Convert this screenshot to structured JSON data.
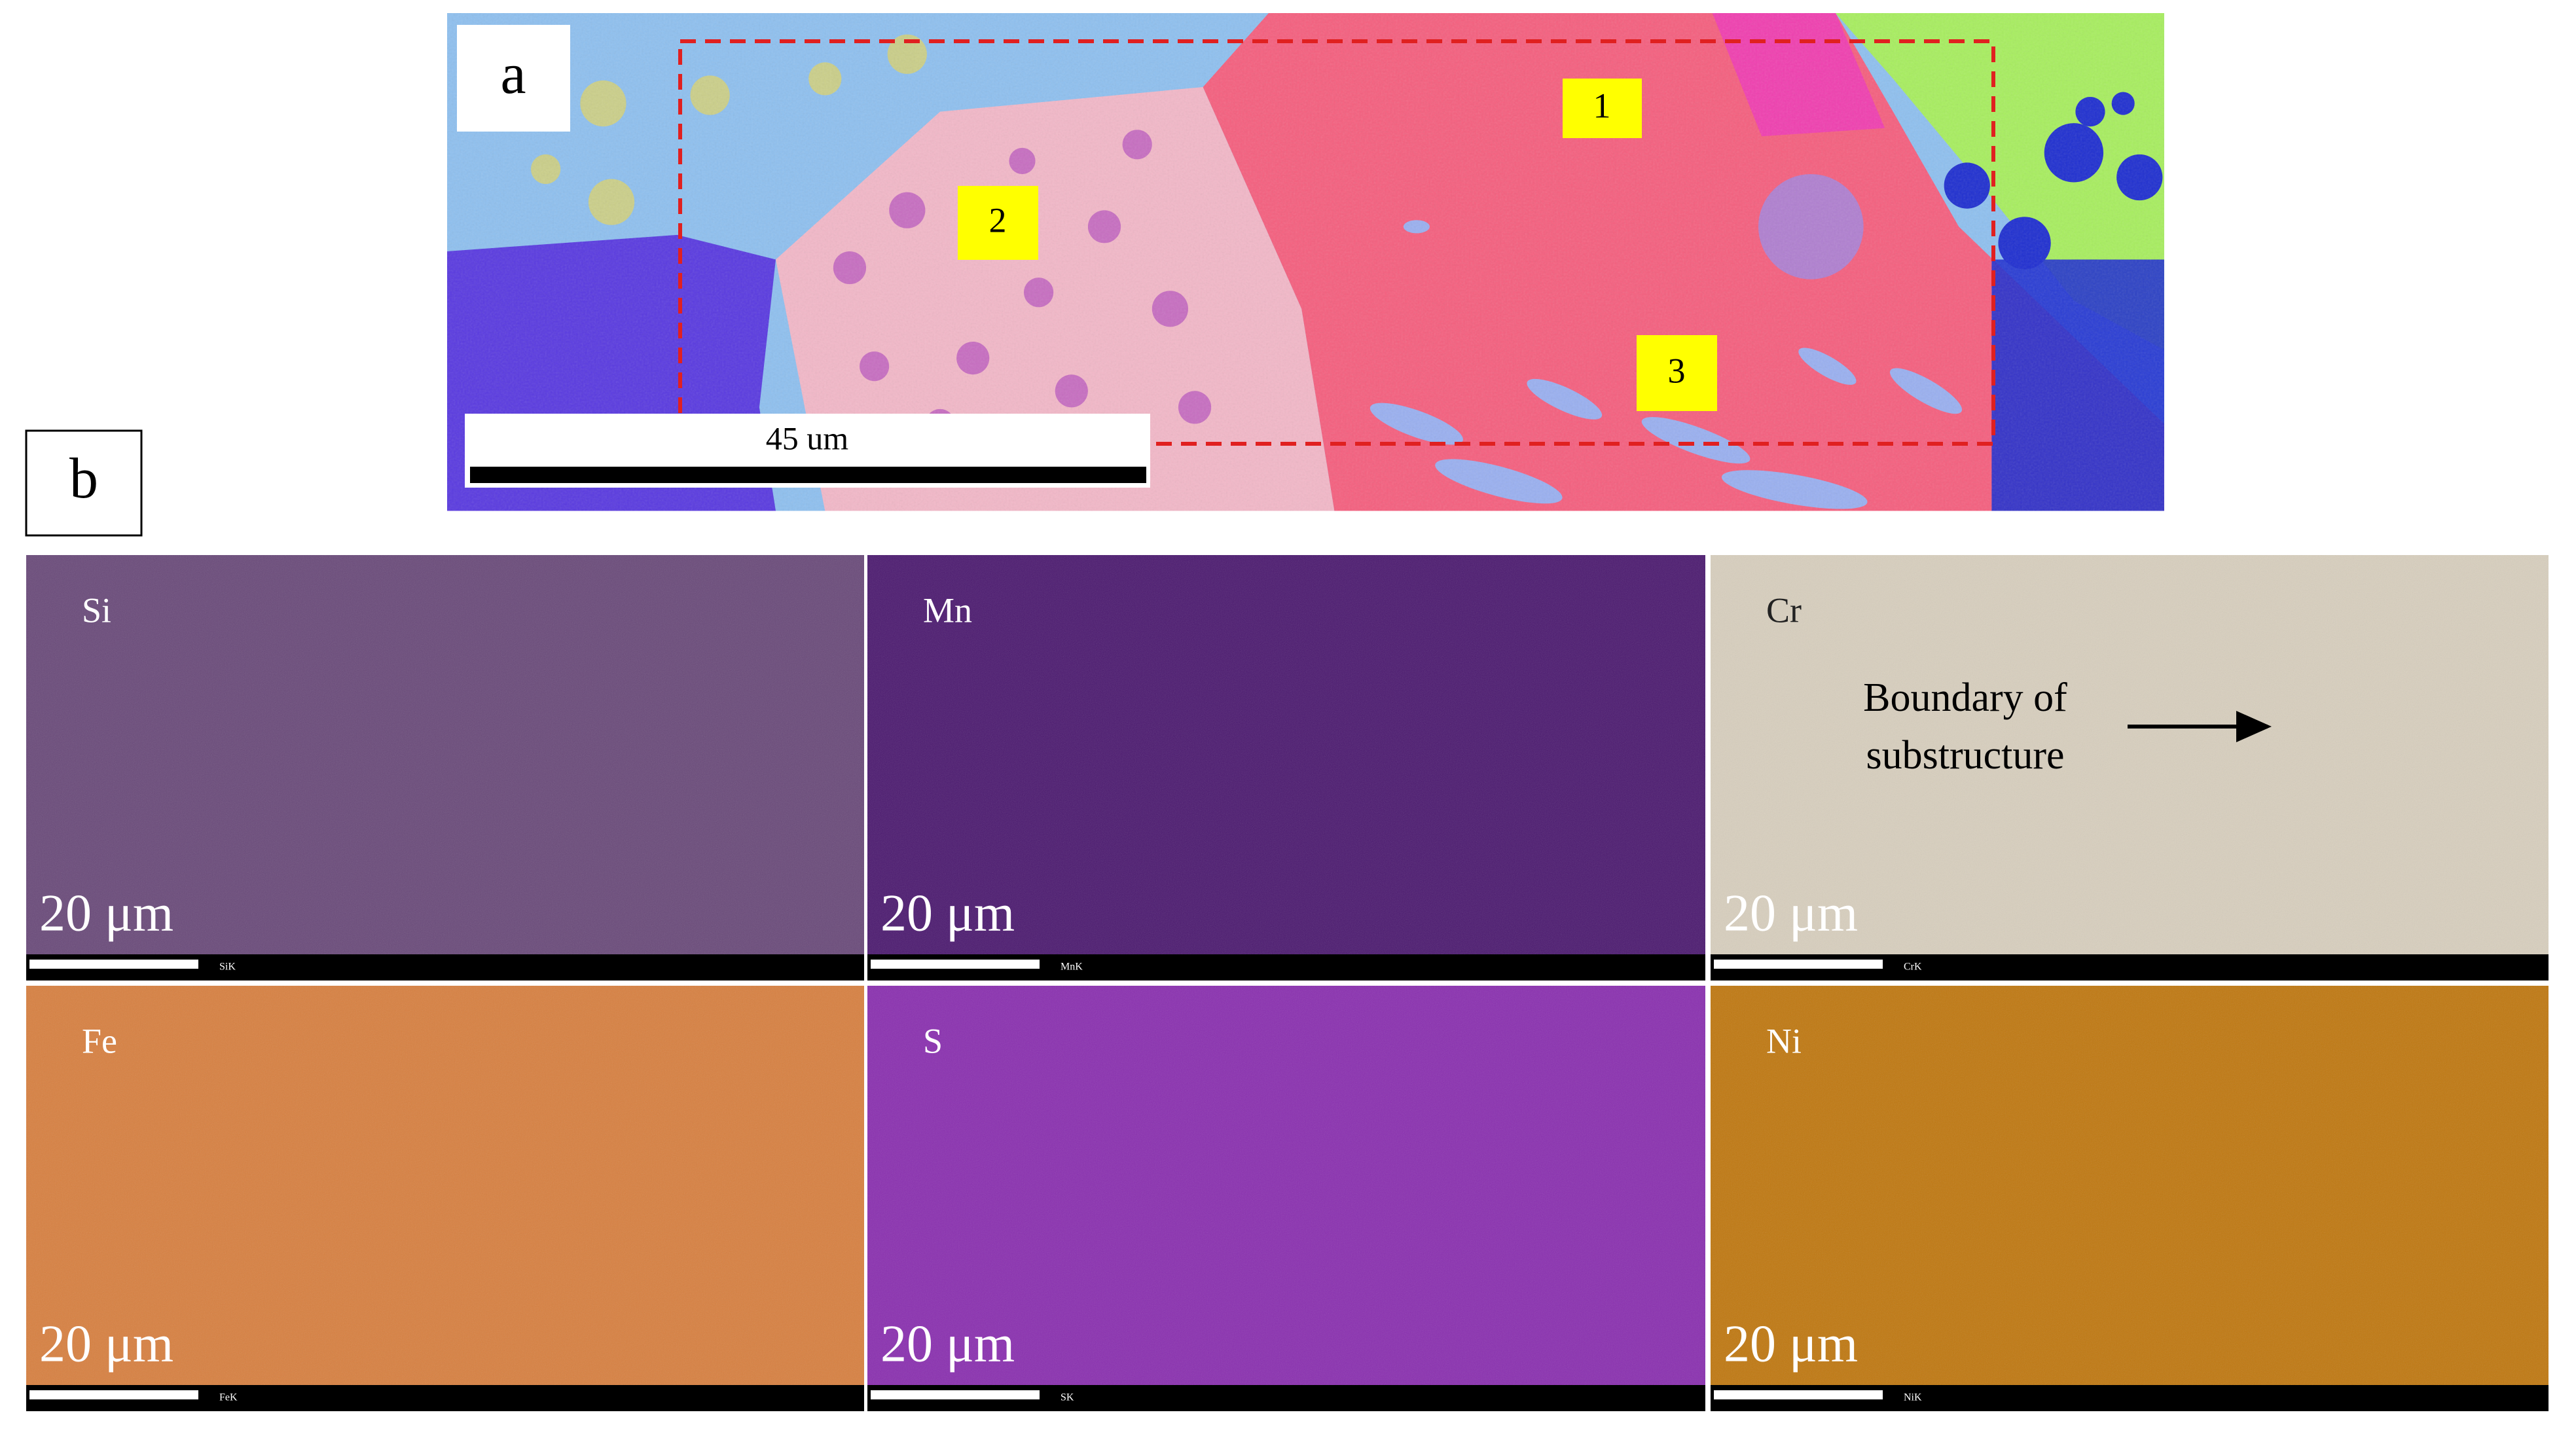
{
  "panel_a": {
    "label": "a",
    "markers": [
      "1",
      "2",
      "3"
    ],
    "scale_bar": "45 um"
  },
  "panel_b": {
    "label": "b",
    "maps": [
      {
        "element": "Si",
        "scale": "20 μm",
        "detector": "SiK"
      },
      {
        "element": "Mn",
        "scale": "20 μm",
        "detector": "MnK"
      },
      {
        "element": "Cr",
        "scale": "20 μm",
        "detector": "CrK"
      },
      {
        "element": "Fe",
        "scale": "20 μm",
        "detector": "FeK"
      },
      {
        "element": "S",
        "scale": "20 μm",
        "detector": "SK"
      },
      {
        "element": "Ni",
        "scale": "20 μm",
        "detector": "NiK"
      }
    ],
    "annotation": [
      "Boundary of",
      "substructure"
    ]
  }
}
